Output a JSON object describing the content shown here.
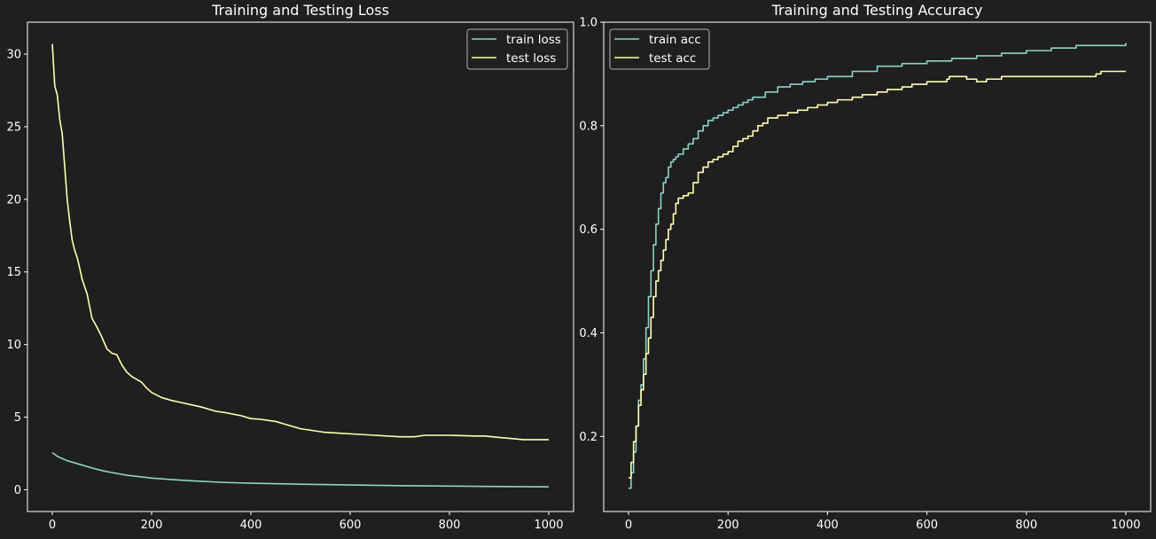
{
  "chart_data": [
    {
      "type": "line",
      "title": "Training and Testing Loss",
      "xlabel": "",
      "ylabel": "",
      "xlim": [
        -50,
        1050
      ],
      "ylim": [
        -1.5,
        32.2
      ],
      "xticks": [
        0,
        200,
        400,
        600,
        800,
        1000
      ],
      "yticks": [
        0,
        5,
        10,
        15,
        20,
        25,
        30
      ],
      "legend_position": "top-right",
      "grid": false,
      "step": false,
      "series": [
        {
          "name": "train loss",
          "color": "#8dd3c7",
          "x": [
            0,
            10,
            20,
            30,
            40,
            50,
            60,
            80,
            100,
            120,
            150,
            200,
            250,
            300,
            350,
            400,
            500,
            600,
            700,
            800,
            900,
            1000
          ],
          "y": [
            2.55,
            2.3,
            2.15,
            2.0,
            1.9,
            1.8,
            1.7,
            1.5,
            1.32,
            1.18,
            1.0,
            0.8,
            0.68,
            0.58,
            0.5,
            0.45,
            0.38,
            0.33,
            0.28,
            0.25,
            0.22,
            0.2
          ]
        },
        {
          "name": "test loss",
          "color": "#ffffb3",
          "x": [
            0,
            5,
            10,
            15,
            20,
            30,
            35,
            40,
            45,
            50,
            55,
            60,
            65,
            70,
            80,
            90,
            100,
            110,
            120,
            130,
            140,
            150,
            160,
            170,
            180,
            190,
            200,
            220,
            240,
            260,
            300,
            330,
            350,
            380,
            400,
            420,
            450,
            470,
            500,
            550,
            600,
            650,
            700,
            730,
            750,
            800,
            850,
            870,
            900,
            950,
            1000
          ],
          "y": [
            30.7,
            27.8,
            27.2,
            25.5,
            24.5,
            20.0,
            18.5,
            17.2,
            16.5,
            16.0,
            15.3,
            14.5,
            14.0,
            13.5,
            11.8,
            11.2,
            10.5,
            9.7,
            9.4,
            9.3,
            8.6,
            8.1,
            7.8,
            7.6,
            7.4,
            7.0,
            6.7,
            6.35,
            6.15,
            6.0,
            5.7,
            5.4,
            5.3,
            5.1,
            4.9,
            4.85,
            4.7,
            4.5,
            4.2,
            3.95,
            3.85,
            3.75,
            3.65,
            3.65,
            3.75,
            3.75,
            3.7,
            3.7,
            3.6,
            3.45,
            3.45
          ]
        }
      ]
    },
    {
      "type": "line",
      "title": "Training and Testing Accuracy",
      "xlabel": "",
      "ylabel": "",
      "xlim": [
        -50,
        1050
      ],
      "ylim": [
        0.055,
        1.0
      ],
      "xticks": [
        0,
        200,
        400,
        600,
        800,
        1000
      ],
      "yticks": [
        0.2,
        0.4,
        0.6,
        0.8,
        1.0
      ],
      "ytick_labels": [
        "0.2",
        "0.4",
        "0.6",
        "0.8",
        "1.0"
      ],
      "legend_position": "top-left",
      "grid": false,
      "step": true,
      "series": [
        {
          "name": "train acc",
          "color": "#8dd3c7",
          "x": [
            0,
            5,
            10,
            15,
            20,
            25,
            30,
            35,
            40,
            45,
            50,
            55,
            60,
            65,
            70,
            75,
            80,
            85,
            90,
            95,
            100,
            110,
            120,
            130,
            140,
            150,
            160,
            170,
            180,
            190,
            200,
            210,
            220,
            230,
            240,
            250,
            275,
            300,
            325,
            350,
            375,
            400,
            450,
            500,
            550,
            600,
            650,
            700,
            750,
            800,
            850,
            900,
            950,
            1000
          ],
          "y": [
            0.1,
            0.13,
            0.17,
            0.22,
            0.27,
            0.3,
            0.35,
            0.41,
            0.47,
            0.52,
            0.57,
            0.61,
            0.64,
            0.67,
            0.69,
            0.7,
            0.72,
            0.73,
            0.735,
            0.74,
            0.745,
            0.755,
            0.765,
            0.775,
            0.79,
            0.8,
            0.81,
            0.815,
            0.82,
            0.825,
            0.83,
            0.835,
            0.84,
            0.845,
            0.85,
            0.855,
            0.865,
            0.875,
            0.88,
            0.885,
            0.89,
            0.895,
            0.905,
            0.915,
            0.92,
            0.925,
            0.93,
            0.935,
            0.94,
            0.945,
            0.95,
            0.955,
            0.955,
            0.96
          ]
        },
        {
          "name": "test acc",
          "color": "#ffffb3",
          "x": [
            0,
            5,
            10,
            15,
            20,
            25,
            30,
            35,
            40,
            45,
            50,
            55,
            60,
            65,
            70,
            75,
            80,
            85,
            90,
            95,
            100,
            110,
            120,
            130,
            140,
            150,
            160,
            170,
            180,
            190,
            200,
            210,
            220,
            230,
            240,
            250,
            260,
            270,
            280,
            300,
            320,
            340,
            360,
            380,
            400,
            420,
            450,
            470,
            500,
            520,
            550,
            570,
            600,
            640,
            645,
            680,
            700,
            720,
            750,
            800,
            850,
            900,
            940,
            950,
            1000
          ],
          "y": [
            0.12,
            0.15,
            0.19,
            0.22,
            0.26,
            0.29,
            0.32,
            0.36,
            0.39,
            0.43,
            0.47,
            0.5,
            0.52,
            0.54,
            0.56,
            0.58,
            0.6,
            0.61,
            0.63,
            0.65,
            0.66,
            0.665,
            0.67,
            0.69,
            0.71,
            0.72,
            0.73,
            0.735,
            0.74,
            0.745,
            0.75,
            0.76,
            0.77,
            0.775,
            0.78,
            0.79,
            0.8,
            0.805,
            0.815,
            0.82,
            0.825,
            0.83,
            0.835,
            0.84,
            0.845,
            0.85,
            0.855,
            0.86,
            0.865,
            0.87,
            0.875,
            0.88,
            0.885,
            0.89,
            0.895,
            0.89,
            0.885,
            0.89,
            0.895,
            0.895,
            0.895,
            0.895,
            0.9,
            0.905,
            0.905
          ]
        }
      ]
    }
  ]
}
